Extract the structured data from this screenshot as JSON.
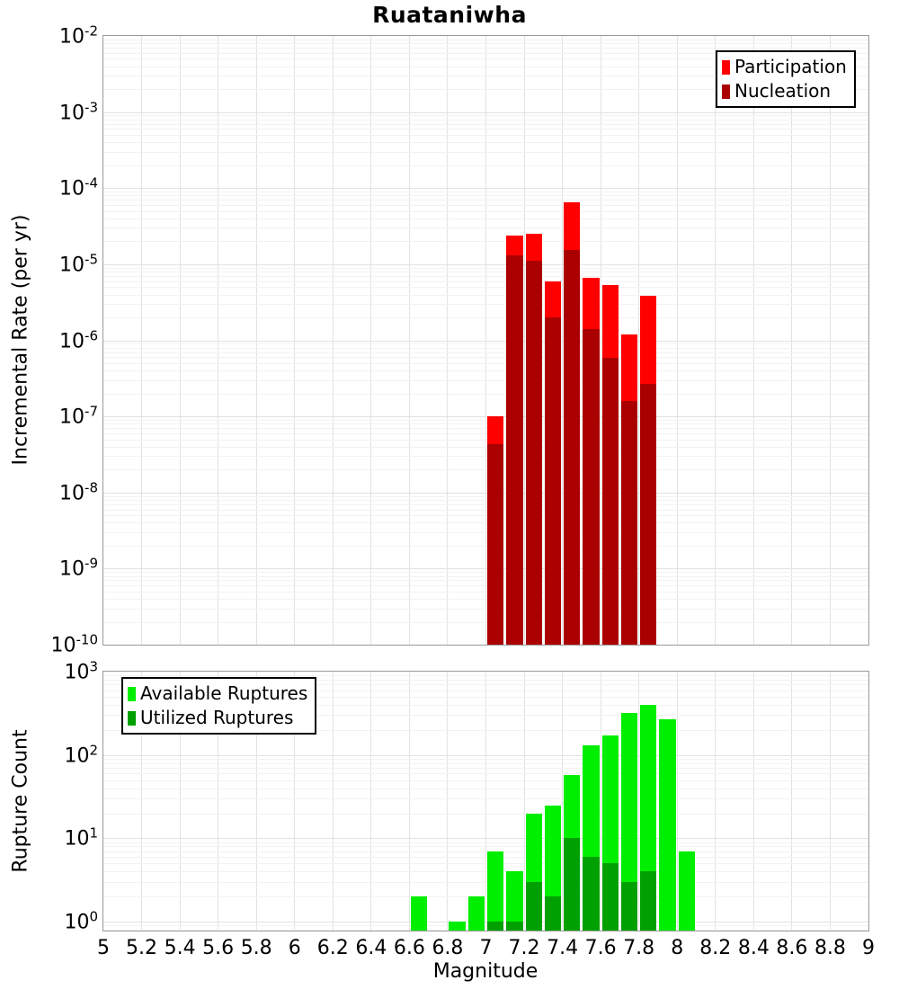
{
  "title": "Ruataniwha",
  "colors": {
    "participation": "#ff0000",
    "nucleation": "#aa0000",
    "available": "#00ee00",
    "utilized": "#00a000",
    "grid_major": "#e2e2e2",
    "grid_minor": "#f2f2f2",
    "frame": "#9a9a9a"
  },
  "chart_data": [
    {
      "id": "rate",
      "type": "bar",
      "title": "Ruataniwha",
      "ylabel": "Incremental Rate (per yr)",
      "xlabel": "",
      "yscale": "log",
      "ylim": [
        1e-10,
        0.01
      ],
      "xlim": [
        5,
        9
      ],
      "bin_width": 0.1,
      "grid": true,
      "legend_position": "top-right",
      "show_x_tick_labels": false,
      "y_tick_exponents": [
        -2,
        -3,
        -4,
        -5,
        -6,
        -7,
        -8,
        -9,
        -10
      ],
      "categories": [
        7.05,
        7.15,
        7.25,
        7.35,
        7.45,
        7.55,
        7.65,
        7.75,
        7.85
      ],
      "series": [
        {
          "name": "Participation",
          "color_key": "participation",
          "values": [
            1e-07,
            2.4e-05,
            2.5e-05,
            6e-06,
            6.5e-05,
            6.6e-06,
            5.4e-06,
            1.2e-06,
            3.8e-06
          ]
        },
        {
          "name": "Nucleation",
          "color_key": "nucleation",
          "values": [
            4.3e-08,
            1.3e-05,
            1.1e-05,
            2e-06,
            1.55e-05,
            1.4e-06,
            5.9e-07,
            1.6e-07,
            2.7e-07
          ]
        }
      ]
    },
    {
      "id": "count",
      "type": "bar",
      "title": "",
      "ylabel": "Rupture Count",
      "xlabel": "Magnitude",
      "yscale": "log",
      "ylim": [
        0.785,
        1000
      ],
      "xlim": [
        5,
        9
      ],
      "bin_width": 0.1,
      "grid": true,
      "legend_position": "top-left",
      "show_x_tick_labels": true,
      "y_tick_exponents": [
        3,
        2,
        1,
        0
      ],
      "x_ticks": {
        "values": [
          5,
          5.2,
          5.4,
          5.6,
          5.8,
          6,
          6.2,
          6.4,
          6.6,
          6.8,
          7,
          7.2,
          7.4,
          7.6,
          7.8,
          8,
          8.2,
          8.4,
          8.6,
          8.8,
          9
        ],
        "labels": [
          "5",
          "5.2",
          "5.4",
          "5.6",
          "5.8",
          "6",
          "6.2",
          "6.4",
          "6.6",
          "6.8",
          "7",
          "7.2",
          "7.4",
          "7.6",
          "7.8",
          "8",
          "8.2",
          "8.4",
          "8.6",
          "8.8",
          "9"
        ]
      },
      "categories": [
        6.65,
        6.85,
        6.95,
        7.05,
        7.15,
        7.25,
        7.35,
        7.45,
        7.55,
        7.65,
        7.75,
        7.85,
        7.95,
        8.05
      ],
      "series": [
        {
          "name": "Available Ruptures",
          "color_key": "available",
          "values": [
            2,
            1,
            2,
            7,
            4,
            20,
            25,
            58,
            130,
            170,
            320,
            400,
            270,
            7
          ]
        },
        {
          "name": "Utilized Ruptures",
          "color_key": "utilized",
          "values": [
            0,
            0,
            0,
            1,
            1,
            3,
            2,
            10,
            6,
            5,
            3,
            4,
            0,
            0
          ]
        }
      ]
    }
  ]
}
